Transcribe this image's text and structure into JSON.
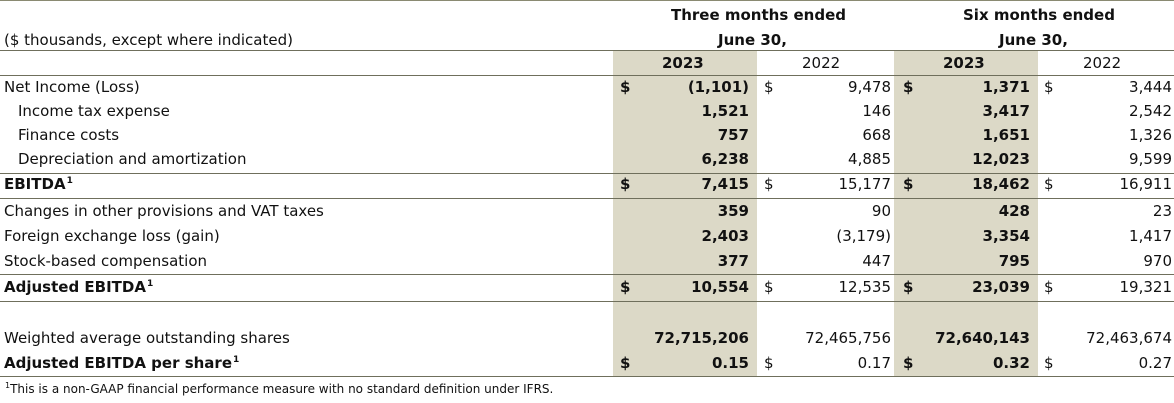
{
  "header": {
    "units_note": "($ thousands, except where indicated)",
    "three_months_title": "Three months ended",
    "three_months_date": "June 30,",
    "six_months_title": "Six months ended",
    "six_months_date": "June 30,",
    "years": [
      "2023",
      "2022",
      "2023",
      "2022"
    ]
  },
  "rows": [
    {
      "label": "Net Income (Loss)",
      "dollar": true,
      "values": [
        "(1,101)",
        "9,478",
        "1,371",
        "3,444"
      ]
    },
    {
      "label": "Income tax expense",
      "values": [
        "1,521",
        "146",
        "3,417",
        "2,542"
      ]
    },
    {
      "label": "Finance costs",
      "values": [
        "757",
        "668",
        "1,651",
        "1,326"
      ]
    },
    {
      "label": "Depreciation and amortization",
      "values": [
        "6,238",
        "4,885",
        "12,023",
        "9,599"
      ]
    },
    {
      "label": "EBITDA",
      "sup": "1",
      "dollar": true,
      "values": [
        "7,415",
        "15,177",
        "18,462",
        "16,911"
      ]
    },
    {
      "label": "Changes in other provisions and VAT taxes",
      "values": [
        "359",
        "90",
        "428",
        "23"
      ]
    },
    {
      "label": "Foreign exchange loss (gain)",
      "values": [
        "2,403",
        "(3,179)",
        "3,354",
        "1,417"
      ]
    },
    {
      "label": "Stock-based compensation",
      "values": [
        "377",
        "447",
        "795",
        "970"
      ]
    },
    {
      "label": "Adjusted EBITDA",
      "sup": "1",
      "dollar": true,
      "values": [
        "10,554",
        "12,535",
        "23,039",
        "19,321"
      ]
    },
    {
      "label": "Weighted average outstanding shares",
      "values": [
        "72,715,206",
        "72,465,756",
        "72,640,143",
        "72,463,674"
      ]
    },
    {
      "label": "Adjusted EBITDA per share",
      "sup": "1",
      "dollar": true,
      "values": [
        "0.15",
        "0.17",
        "0.32",
        "0.27"
      ]
    }
  ],
  "currency_symbol": "$",
  "footnote": {
    "marker": "1",
    "text": "This is a non-GAAP financial performance measure with no standard definition under IFRS."
  }
}
